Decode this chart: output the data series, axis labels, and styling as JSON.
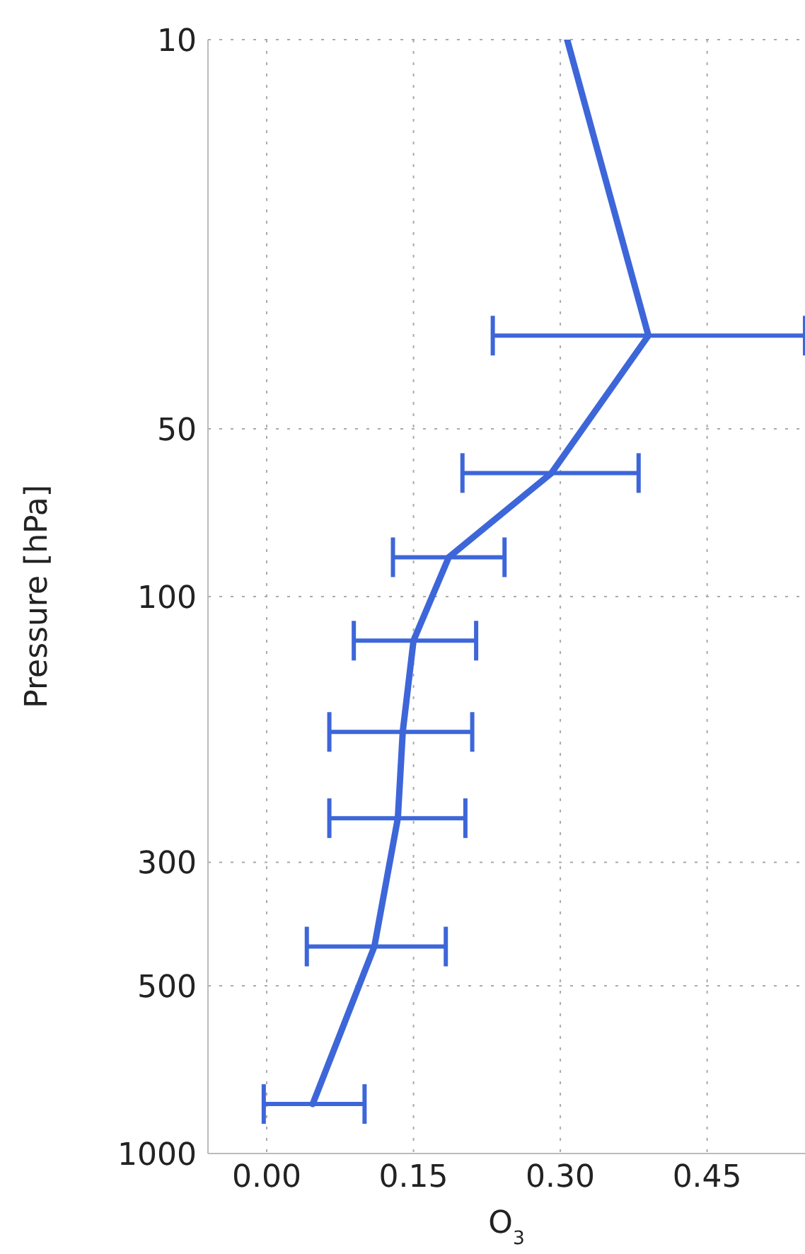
{
  "chart_data": {
    "type": "line",
    "xlabel": "O$_{3}$",
    "ylabel": "Pressure [hPa]",
    "series": [
      {
        "color": "#3d66d9",
        "x": [
          0.307,
          0.39,
          0.291,
          0.186,
          0.15,
          0.139,
          0.134,
          0.11,
          0.047
        ],
        "values": [
          10,
          34,
          60,
          85,
          120,
          175,
          250,
          425,
          815
        ],
        "xerrors": [
          null,
          [
            0.231,
            0.55
          ],
          [
            0.2,
            0.38
          ],
          [
            0.129,
            0.243
          ],
          [
            0.089,
            0.214
          ],
          [
            0.064,
            0.21
          ],
          [
            0.064,
            0.203
          ],
          [
            0.041,
            0.183
          ],
          [
            -0.003,
            0.1
          ]
        ]
      }
    ],
    "xlim": [
      -0.06,
      0.55
    ],
    "xticks": [
      {
        "value": 0,
        "label": "0.00"
      },
      {
        "value": 0.15,
        "label": "0.15"
      },
      {
        "value": 0.3,
        "label": "0.30"
      },
      {
        "value": 0.45,
        "label": "0.45"
      }
    ],
    "ylim": [
      1000,
      10
    ],
    "yticks": [
      10,
      50,
      100,
      300,
      500,
      1000
    ],
    "log": "y",
    "grid": true,
    "marker": "none",
    "line_style": "solid"
  }
}
